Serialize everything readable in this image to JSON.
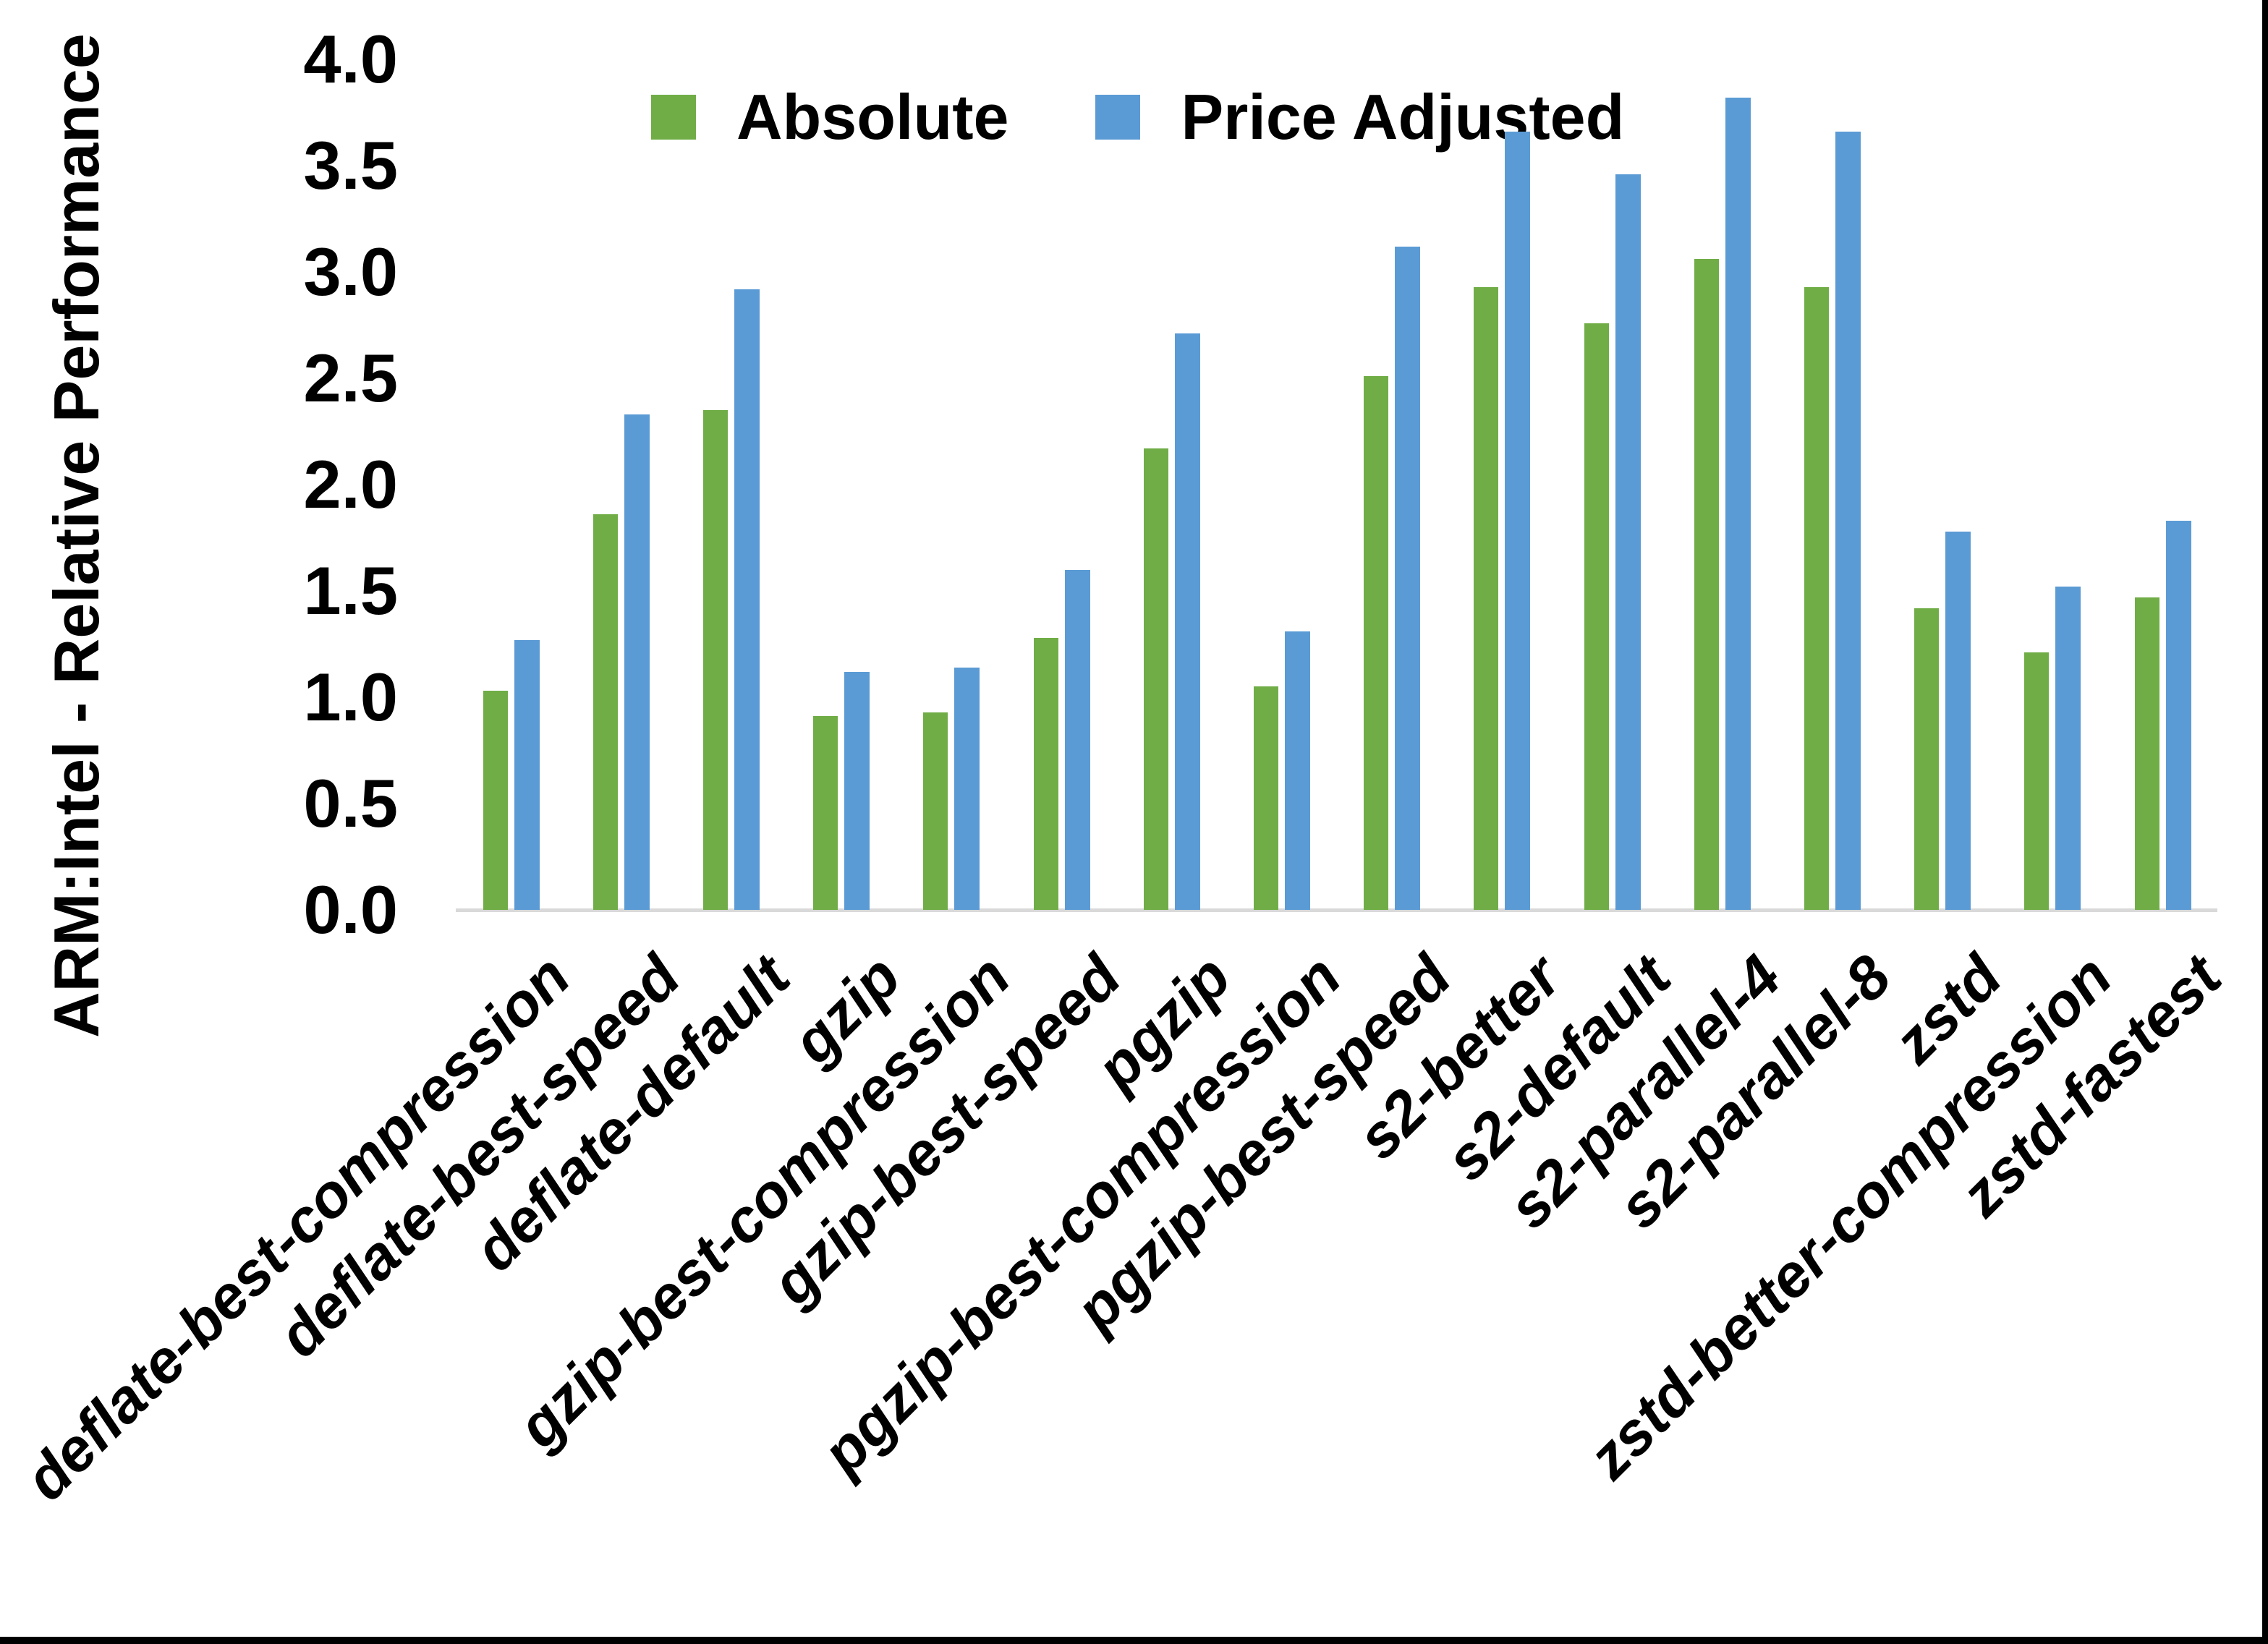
{
  "chart_data": {
    "type": "bar",
    "ylabel": "ARM:Intel - Relative Performance",
    "ylim": [
      0.0,
      4.0
    ],
    "ytick_step": 0.5,
    "ytick_labels": [
      "0.0",
      "0.5",
      "1.0",
      "1.5",
      "2.0",
      "2.5",
      "3.0",
      "3.5",
      "4.0"
    ],
    "grid": false,
    "legend_position": "top-center",
    "categories": [
      "deflate-best-compression",
      "deflate-best-speed",
      "deflate-default",
      "gzip",
      "gzip-best-compression",
      "gzip-best-speed",
      "pgzip",
      "pgzip-best-compression",
      "pgzip-best-speed",
      "s2-better",
      "s2-default",
      "s2-parallel-4",
      "s2-parallel-8",
      "zstd",
      "zstd-better-compression",
      "zstd-fastest"
    ],
    "series": [
      {
        "name": "Absolute",
        "color": "#70AD47",
        "values": [
          1.03,
          1.86,
          2.35,
          0.91,
          0.93,
          1.28,
          2.17,
          1.05,
          2.51,
          2.93,
          2.76,
          3.06,
          2.93,
          1.42,
          1.21,
          1.47
        ]
      },
      {
        "name": "Price Adjusted",
        "color": "#5B9BD5",
        "values": [
          1.27,
          2.33,
          2.92,
          1.12,
          1.14,
          1.6,
          2.71,
          1.31,
          3.12,
          3.66,
          3.46,
          3.82,
          3.66,
          1.78,
          1.52,
          1.83
        ]
      }
    ]
  },
  "frame": {
    "background": "#FFFFFF",
    "border_color": "#000000",
    "axis_line_color": "#D9D9D9",
    "text_color": "#000000"
  }
}
